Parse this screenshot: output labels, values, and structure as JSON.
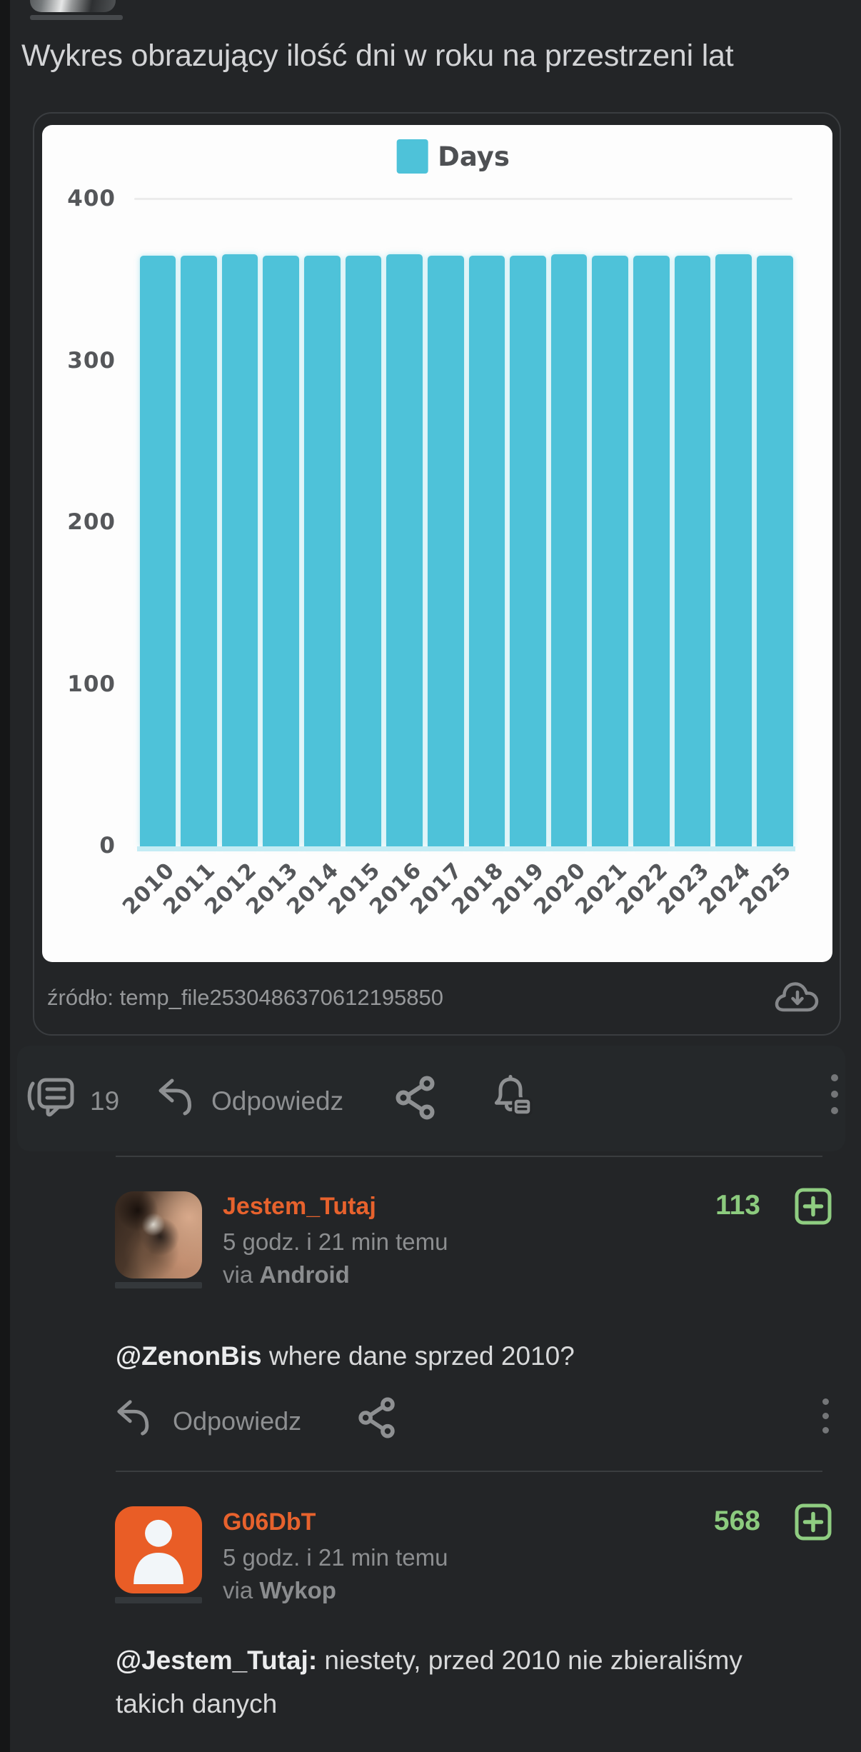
{
  "colors": {
    "page_bg": "#232527",
    "accent_orange": "#e7622d",
    "score_green": "#8ccb7e",
    "plus_green": "#8fcd81",
    "bar_cyan": "#4ec2d9",
    "icon_gray": "#8e9092"
  },
  "post": {
    "title": "Wykres obrazujący ilość dni w roku na przestrzeni lat",
    "source_label": "źródło: temp_file2530486370612195850",
    "actions": {
      "comments_count": "19",
      "reply_label": "Odpowiedz"
    }
  },
  "chart_data": {
    "type": "bar",
    "title": "",
    "xlabel": "",
    "ylabel": "",
    "series_name": "Days",
    "legend_position": "top-center",
    "categories": [
      "2010",
      "2011",
      "2012",
      "2013",
      "2014",
      "2015",
      "2016",
      "2017",
      "2018",
      "2019",
      "2020",
      "2021",
      "2022",
      "2023",
      "2024",
      "2025"
    ],
    "values": [
      365,
      365,
      366,
      365,
      365,
      365,
      366,
      365,
      365,
      365,
      366,
      365,
      365,
      365,
      366,
      365
    ],
    "ylim": [
      0,
      400
    ],
    "yticks": [
      400,
      300,
      200,
      100,
      0
    ],
    "grid": "single gridline at 400 only",
    "bar_color": "#4ec2d9"
  },
  "comments": [
    {
      "username": "Jestem_Tutaj",
      "time": "5 godz. i 21 min temu",
      "via_prefix": "via",
      "via_app": "Android",
      "score": "113",
      "mention": "@ZenonBis",
      "text": " where dane sprzed 2010?",
      "reply_label": "Odpowiedz"
    },
    {
      "username": "G06DbT",
      "time": "5 godz. i 21 min temu",
      "via_prefix": "via",
      "via_app": "Wykop",
      "score": "568",
      "mention": "@Jestem_Tutaj:",
      "text": " niestety, przed 2010 nie zbieraliśmy takich danych"
    }
  ]
}
